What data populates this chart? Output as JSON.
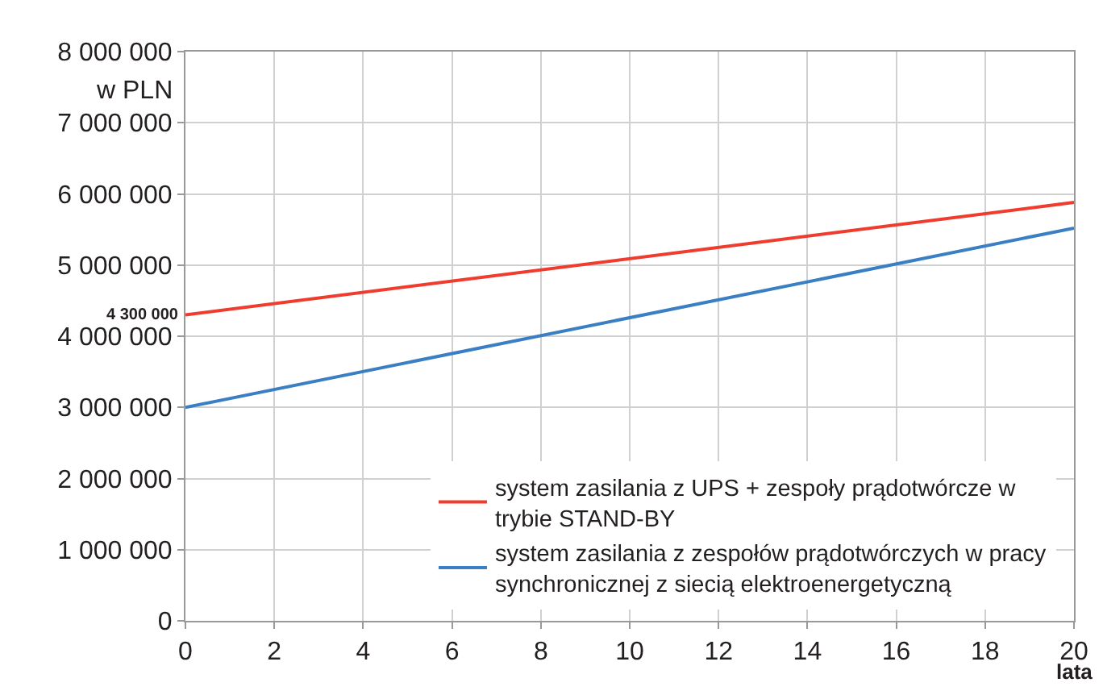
{
  "chart_data": {
    "type": "line",
    "xlabel": "lata",
    "ylabel": "w PLN",
    "x": [
      0,
      20
    ],
    "series": [
      {
        "name": "system zasilania z UPS + zespoły prądotwórcze w trybie STAND-BY",
        "color": "#f03c2e",
        "values": [
          4300000,
          5880000
        ]
      },
      {
        "name": "system zasilania z zespołów prądotwórczych w pracy synchronicznej z siecią elektroenergetyczną",
        "color": "#3a7fc4",
        "values": [
          3000000,
          5520000
        ]
      }
    ],
    "annotations": [
      {
        "text": "4 300 000",
        "x": 0,
        "y": 4300000
      }
    ],
    "xlim": [
      0,
      20
    ],
    "xticks": [
      0,
      2,
      4,
      6,
      8,
      10,
      12,
      14,
      16,
      18,
      20
    ],
    "ylim": [
      0,
      8000000
    ],
    "yticks": [
      {
        "value": 0,
        "label": "0"
      },
      {
        "value": 1000000,
        "label": "1 000 000"
      },
      {
        "value": 2000000,
        "label": "2 000 000"
      },
      {
        "value": 3000000,
        "label": "3 000 000"
      },
      {
        "value": 4000000,
        "label": "4 000 000"
      },
      {
        "value": 5000000,
        "label": "5 000 000"
      },
      {
        "value": 6000000,
        "label": "6 000 000"
      },
      {
        "value": 7000000,
        "label": "7 000 000"
      },
      {
        "value": 8000000,
        "label": "8 000 000"
      }
    ],
    "grid": true,
    "legend": "bottom right",
    "line_style": "solid",
    "marker": "none"
  }
}
